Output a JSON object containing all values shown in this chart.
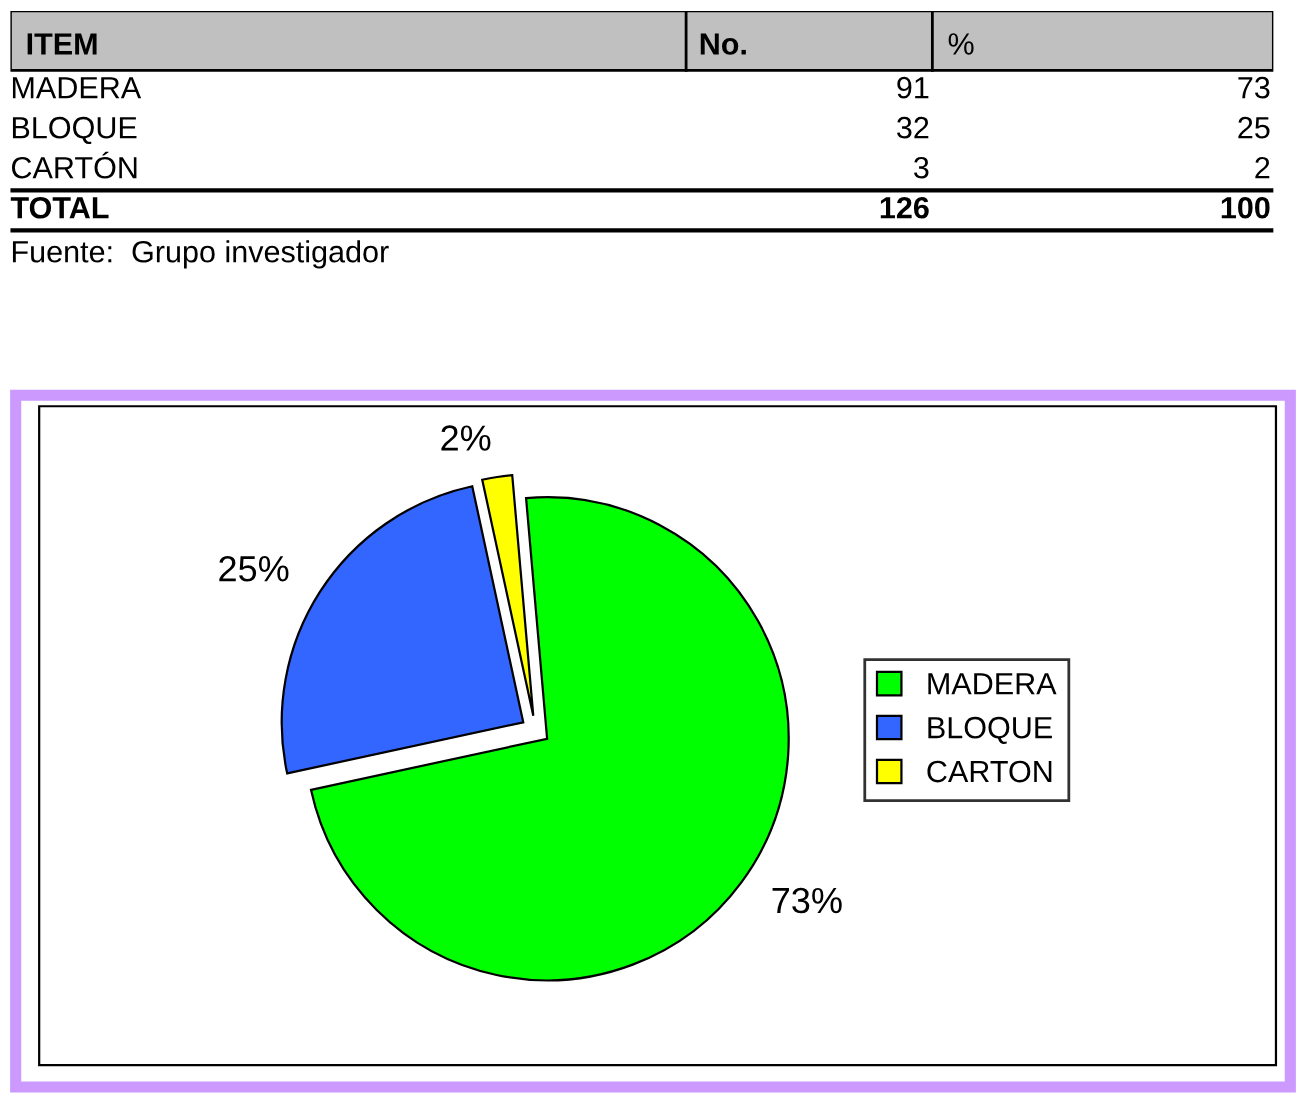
{
  "chart_data": [
    {
      "type": "other",
      "ylabel": "ITEM",
      "categories": [
        "MADERA",
        "BLOQUE",
        "CARTÓN",
        "TOTAL"
      ],
      "series": [
        {
          "name": "No.",
          "values": [
            91,
            32,
            3,
            126
          ]
        },
        {
          "name": "%",
          "values": [
            73,
            25,
            2,
            100
          ]
        }
      ],
      "data_labels": true,
      "annotations": [
        "Fuente:  Grupo investigador"
      ]
    },
    {
      "type": "pie",
      "categories": [
        "MADERA",
        "BLOQUE",
        "CARTON"
      ],
      "values": [
        73,
        25,
        2
      ],
      "colors": [
        "#00ff00",
        "#3366ff",
        "#ffff00"
      ],
      "value_labels": [
        "73%",
        "25%",
        "2%"
      ],
      "legend": "right"
    }
  ]
}
